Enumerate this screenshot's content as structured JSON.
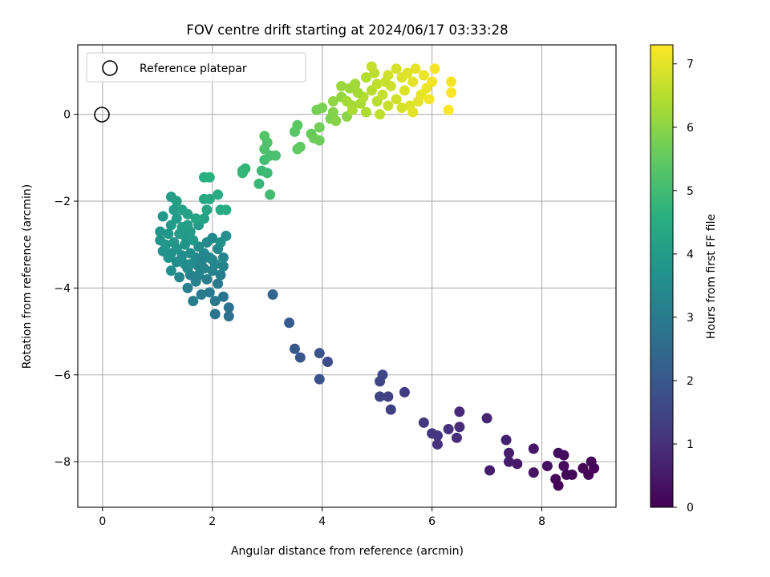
{
  "chart_data": {
    "type": "scatter",
    "title": "FOV centre drift starting at 2024/06/17 03:33:28",
    "xlabel": "Angular distance from reference (arcmin)",
    "ylabel": "Rotation from reference (arcmin)",
    "xlim": [
      -0.45,
      9.35
    ],
    "ylim": [
      -9.05,
      1.6
    ],
    "xticks": [
      "0",
      "2",
      "4",
      "6",
      "8"
    ],
    "yticks": [
      "0",
      "−2",
      "−4",
      "−6",
      "−8"
    ],
    "grid": true,
    "legend": {
      "position": "top-left",
      "entries": [
        "Reference platepar"
      ]
    },
    "reference_point": {
      "x": 0,
      "y": 0,
      "marker": "hollow circle"
    },
    "colorbar": {
      "label": "Hours from first FF file",
      "range": [
        0,
        7.3
      ],
      "ticks": [
        "0",
        "1",
        "2",
        "3",
        "4",
        "5",
        "6",
        "7"
      ],
      "colormap": "viridis"
    },
    "points": [
      {
        "x": 8.3,
        "y": -8.55,
        "h": 0.05
      },
      {
        "x": 8.25,
        "y": -8.4,
        "h": 0.1
      },
      {
        "x": 8.45,
        "y": -8.3,
        "h": 0.1
      },
      {
        "x": 8.55,
        "y": -8.3,
        "h": 0.15
      },
      {
        "x": 8.85,
        "y": -8.3,
        "h": 0.05
      },
      {
        "x": 8.75,
        "y": -8.15,
        "h": 0.1
      },
      {
        "x": 8.95,
        "y": -8.15,
        "h": 0.05
      },
      {
        "x": 8.9,
        "y": -8.0,
        "h": 0.1
      },
      {
        "x": 8.4,
        "y": -8.1,
        "h": 0.2
      },
      {
        "x": 8.4,
        "y": -7.85,
        "h": 0.25
      },
      {
        "x": 8.3,
        "y": -7.8,
        "h": 0.3
      },
      {
        "x": 8.1,
        "y": -8.1,
        "h": 0.35
      },
      {
        "x": 7.85,
        "y": -8.25,
        "h": 0.4
      },
      {
        "x": 7.85,
        "y": -7.7,
        "h": 0.45
      },
      {
        "x": 7.55,
        "y": -8.05,
        "h": 0.5
      },
      {
        "x": 7.4,
        "y": -8.0,
        "h": 0.55
      },
      {
        "x": 7.4,
        "y": -7.8,
        "h": 0.6
      },
      {
        "x": 7.35,
        "y": -7.5,
        "h": 0.65
      },
      {
        "x": 7.05,
        "y": -8.2,
        "h": 0.55
      },
      {
        "x": 7.0,
        "y": -7.0,
        "h": 0.75
      },
      {
        "x": 6.5,
        "y": -6.85,
        "h": 0.85
      },
      {
        "x": 6.5,
        "y": -7.2,
        "h": 0.9
      },
      {
        "x": 6.45,
        "y": -7.45,
        "h": 0.95
      },
      {
        "x": 6.3,
        "y": -7.25,
        "h": 1.0
      },
      {
        "x": 6.1,
        "y": -7.6,
        "h": 1.05
      },
      {
        "x": 6.1,
        "y": -7.4,
        "h": 1.1
      },
      {
        "x": 6.0,
        "y": -7.35,
        "h": 1.15
      },
      {
        "x": 5.85,
        "y": -7.1,
        "h": 1.2
      },
      {
        "x": 5.5,
        "y": -6.4,
        "h": 1.3
      },
      {
        "x": 5.25,
        "y": -6.8,
        "h": 1.35
      },
      {
        "x": 5.2,
        "y": -6.5,
        "h": 1.4
      },
      {
        "x": 5.05,
        "y": -6.5,
        "h": 1.45
      },
      {
        "x": 5.05,
        "y": -6.15,
        "h": 1.5
      },
      {
        "x": 5.1,
        "y": -6.0,
        "h": 1.55
      },
      {
        "x": 4.1,
        "y": -5.7,
        "h": 1.75
      },
      {
        "x": 3.95,
        "y": -6.1,
        "h": 1.8
      },
      {
        "x": 3.95,
        "y": -5.5,
        "h": 1.85
      },
      {
        "x": 3.6,
        "y": -5.6,
        "h": 1.95
      },
      {
        "x": 3.5,
        "y": -5.4,
        "h": 2.0
      },
      {
        "x": 3.4,
        "y": -4.8,
        "h": 2.15
      },
      {
        "x": 3.1,
        "y": -4.15,
        "h": 2.4
      },
      {
        "x": 2.3,
        "y": -4.65,
        "h": 2.7
      },
      {
        "x": 2.3,
        "y": -4.45,
        "h": 2.75
      },
      {
        "x": 2.2,
        "y": -4.2,
        "h": 2.8
      },
      {
        "x": 2.05,
        "y": -4.6,
        "h": 2.85
      },
      {
        "x": 2.05,
        "y": -4.3,
        "h": 2.9
      },
      {
        "x": 1.95,
        "y": -4.1,
        "h": 2.95
      },
      {
        "x": 1.8,
        "y": -4.15,
        "h": 3.0
      },
      {
        "x": 1.65,
        "y": -4.3,
        "h": 3.05
      },
      {
        "x": 1.55,
        "y": -4.0,
        "h": 3.1
      },
      {
        "x": 1.6,
        "y": -3.7,
        "h": 3.15
      },
      {
        "x": 1.75,
        "y": -3.5,
        "h": 3.2
      },
      {
        "x": 1.9,
        "y": -3.8,
        "h": 3.1
      },
      {
        "x": 2.0,
        "y": -3.6,
        "h": 3.2
      },
      {
        "x": 2.1,
        "y": -3.9,
        "h": 3.0
      },
      {
        "x": 2.15,
        "y": -3.7,
        "h": 3.1
      },
      {
        "x": 2.2,
        "y": -3.5,
        "h": 3.25
      },
      {
        "x": 2.0,
        "y": -3.35,
        "h": 3.3
      },
      {
        "x": 1.85,
        "y": -3.2,
        "h": 3.35
      },
      {
        "x": 1.7,
        "y": -3.3,
        "h": 3.4
      },
      {
        "x": 1.5,
        "y": -3.45,
        "h": 3.5
      },
      {
        "x": 1.35,
        "y": -3.4,
        "h": 3.55
      },
      {
        "x": 1.25,
        "y": -3.6,
        "h": 3.6
      },
      {
        "x": 1.2,
        "y": -3.3,
        "h": 3.65
      },
      {
        "x": 1.1,
        "y": -3.15,
        "h": 3.7
      },
      {
        "x": 1.05,
        "y": -2.9,
        "h": 3.75
      },
      {
        "x": 1.05,
        "y": -2.7,
        "h": 3.8
      },
      {
        "x": 1.1,
        "y": -2.35,
        "h": 3.85
      },
      {
        "x": 1.25,
        "y": -2.55,
        "h": 3.9
      },
      {
        "x": 1.35,
        "y": -2.4,
        "h": 3.95
      },
      {
        "x": 1.3,
        "y": -2.2,
        "h": 4.0
      },
      {
        "x": 1.25,
        "y": -1.9,
        "h": 4.05
      },
      {
        "x": 1.35,
        "y": -2.0,
        "h": 4.1
      },
      {
        "x": 1.45,
        "y": -2.2,
        "h": 4.15
      },
      {
        "x": 1.55,
        "y": -2.3,
        "h": 4.2
      },
      {
        "x": 1.45,
        "y": -2.6,
        "h": 4.1
      },
      {
        "x": 1.6,
        "y": -2.7,
        "h": 4.0
      },
      {
        "x": 1.75,
        "y": -2.55,
        "h": 3.95
      },
      {
        "x": 1.85,
        "y": -2.4,
        "h": 4.15
      },
      {
        "x": 1.7,
        "y": -2.4,
        "h": 4.25
      },
      {
        "x": 1.5,
        "y": -2.8,
        "h": 3.9
      },
      {
        "x": 1.3,
        "y": -2.95,
        "h": 3.85
      },
      {
        "x": 1.2,
        "y": -2.75,
        "h": 3.8
      },
      {
        "x": 1.35,
        "y": -3.1,
        "h": 3.75
      },
      {
        "x": 1.5,
        "y": -3.0,
        "h": 3.7
      },
      {
        "x": 1.6,
        "y": -3.2,
        "h": 3.6
      },
      {
        "x": 1.75,
        "y": -3.05,
        "h": 3.55
      },
      {
        "x": 1.9,
        "y": -2.95,
        "h": 3.5
      },
      {
        "x": 2.0,
        "y": -2.85,
        "h": 3.45
      },
      {
        "x": 2.1,
        "y": -3.1,
        "h": 3.4
      },
      {
        "x": 2.2,
        "y": -3.3,
        "h": 3.35
      },
      {
        "x": 2.25,
        "y": -2.8,
        "h": 3.6
      },
      {
        "x": 2.15,
        "y": -2.95,
        "h": 3.65
      },
      {
        "x": 1.45,
        "y": -3.25,
        "h": 3.6
      },
      {
        "x": 1.55,
        "y": -3.55,
        "h": 3.45
      },
      {
        "x": 1.4,
        "y": -3.75,
        "h": 3.35
      },
      {
        "x": 1.7,
        "y": -3.85,
        "h": 3.25
      },
      {
        "x": 1.85,
        "y": -3.55,
        "h": 3.3
      },
      {
        "x": 1.95,
        "y": -3.3,
        "h": 3.4
      },
      {
        "x": 1.65,
        "y": -2.9,
        "h": 3.9
      },
      {
        "x": 1.4,
        "y": -2.75,
        "h": 4.0
      },
      {
        "x": 1.55,
        "y": -2.55,
        "h": 4.05
      },
      {
        "x": 1.25,
        "y": -3.2,
        "h": 3.7
      },
      {
        "x": 1.15,
        "y": -3.0,
        "h": 3.8
      },
      {
        "x": 1.8,
        "y": -3.4,
        "h": 3.3
      },
      {
        "x": 2.05,
        "y": -3.45,
        "h": 3.35
      },
      {
        "x": 1.75,
        "y": -3.7,
        "h": 3.2
      },
      {
        "x": 1.6,
        "y": -3.45,
        "h": 3.5
      },
      {
        "x": 1.9,
        "y": -2.2,
        "h": 4.3
      },
      {
        "x": 1.85,
        "y": -1.95,
        "h": 4.35
      },
      {
        "x": 1.95,
        "y": -1.95,
        "h": 4.4
      },
      {
        "x": 2.15,
        "y": -2.2,
        "h": 4.45
      },
      {
        "x": 2.1,
        "y": -1.85,
        "h": 4.5
      },
      {
        "x": 2.25,
        "y": -2.2,
        "h": 4.5
      },
      {
        "x": 1.85,
        "y": -1.45,
        "h": 4.55
      },
      {
        "x": 1.95,
        "y": -1.45,
        "h": 4.6
      },
      {
        "x": 2.55,
        "y": -1.3,
        "h": 4.7
      },
      {
        "x": 2.6,
        "y": -1.25,
        "h": 4.75
      },
      {
        "x": 2.55,
        "y": -1.35,
        "h": 4.8
      },
      {
        "x": 2.85,
        "y": -1.6,
        "h": 4.85
      },
      {
        "x": 2.9,
        "y": -1.3,
        "h": 4.9
      },
      {
        "x": 3.0,
        "y": -1.35,
        "h": 4.95
      },
      {
        "x": 3.05,
        "y": -1.85,
        "h": 5.0
      },
      {
        "x": 2.95,
        "y": -1.05,
        "h": 5.05
      },
      {
        "x": 3.05,
        "y": -0.95,
        "h": 5.1
      },
      {
        "x": 3.15,
        "y": -0.95,
        "h": 5.15
      },
      {
        "x": 2.95,
        "y": -0.8,
        "h": 5.2
      },
      {
        "x": 3.0,
        "y": -0.65,
        "h": 5.25
      },
      {
        "x": 2.95,
        "y": -0.5,
        "h": 5.3
      },
      {
        "x": 3.5,
        "y": -0.4,
        "h": 5.35
      },
      {
        "x": 3.55,
        "y": -0.25,
        "h": 5.4
      },
      {
        "x": 3.6,
        "y": -0.75,
        "h": 5.45
      },
      {
        "x": 3.55,
        "y": -0.8,
        "h": 5.5
      },
      {
        "x": 3.8,
        "y": -0.45,
        "h": 5.55
      },
      {
        "x": 3.85,
        "y": -0.55,
        "h": 5.6
      },
      {
        "x": 3.95,
        "y": -0.6,
        "h": 5.65
      },
      {
        "x": 3.95,
        "y": -0.3,
        "h": 5.7
      },
      {
        "x": 3.9,
        "y": 0.1,
        "h": 5.75
      },
      {
        "x": 4.0,
        "y": 0.15,
        "h": 5.8
      },
      {
        "x": 4.15,
        "y": -0.1,
        "h": 5.85
      },
      {
        "x": 4.2,
        "y": 0.05,
        "h": 5.9
      },
      {
        "x": 4.25,
        "y": -0.15,
        "h": 5.95
      },
      {
        "x": 4.45,
        "y": -0.05,
        "h": 6.0
      },
      {
        "x": 4.2,
        "y": 0.3,
        "h": 6.05
      },
      {
        "x": 4.35,
        "y": 0.4,
        "h": 6.1
      },
      {
        "x": 4.35,
        "y": 0.65,
        "h": 6.15
      },
      {
        "x": 4.5,
        "y": 0.6,
        "h": 6.2
      },
      {
        "x": 4.6,
        "y": 0.7,
        "h": 6.25
      },
      {
        "x": 4.45,
        "y": 0.3,
        "h": 6.3
      },
      {
        "x": 4.55,
        "y": 0.2,
        "h": 6.3
      },
      {
        "x": 4.7,
        "y": 0.25,
        "h": 6.35
      },
      {
        "x": 4.8,
        "y": 0.05,
        "h": 6.4
      },
      {
        "x": 4.75,
        "y": 0.4,
        "h": 6.45
      },
      {
        "x": 4.9,
        "y": 0.55,
        "h": 6.5
      },
      {
        "x": 4.65,
        "y": 0.5,
        "h": 6.3
      },
      {
        "x": 4.8,
        "y": 0.85,
        "h": 6.45
      },
      {
        "x": 4.95,
        "y": 0.95,
        "h": 6.55
      },
      {
        "x": 5.0,
        "y": 0.7,
        "h": 6.6
      },
      {
        "x": 4.9,
        "y": 1.1,
        "h": 6.65
      },
      {
        "x": 5.05,
        "y": 0.0,
        "h": 6.6
      },
      {
        "x": 5.0,
        "y": 0.3,
        "h": 6.5
      },
      {
        "x": 5.1,
        "y": 0.45,
        "h": 6.65
      },
      {
        "x": 5.2,
        "y": 0.2,
        "h": 6.7
      },
      {
        "x": 5.25,
        "y": 0.65,
        "h": 6.75
      },
      {
        "x": 5.35,
        "y": 0.35,
        "h": 6.8
      },
      {
        "x": 5.2,
        "y": 0.9,
        "h": 6.8
      },
      {
        "x": 5.35,
        "y": 1.05,
        "h": 6.85
      },
      {
        "x": 5.45,
        "y": 0.85,
        "h": 6.9
      },
      {
        "x": 5.5,
        "y": 0.55,
        "h": 6.9
      },
      {
        "x": 5.6,
        "y": 0.2,
        "h": 6.95
      },
      {
        "x": 5.65,
        "y": 0.05,
        "h": 7.0
      },
      {
        "x": 5.55,
        "y": 0.95,
        "h": 6.95
      },
      {
        "x": 5.65,
        "y": 0.75,
        "h": 7.0
      },
      {
        "x": 5.7,
        "y": 1.05,
        "h": 7.05
      },
      {
        "x": 5.8,
        "y": 0.45,
        "h": 7.05
      },
      {
        "x": 5.85,
        "y": 0.9,
        "h": 7.1
      },
      {
        "x": 5.9,
        "y": 0.6,
        "h": 7.1
      },
      {
        "x": 5.95,
        "y": 0.35,
        "h": 7.15
      },
      {
        "x": 6.0,
        "y": 0.75,
        "h": 7.15
      },
      {
        "x": 6.05,
        "y": 1.05,
        "h": 7.2
      },
      {
        "x": 5.75,
        "y": 0.3,
        "h": 7.0
      },
      {
        "x": 5.45,
        "y": 0.15,
        "h": 6.85
      },
      {
        "x": 5.15,
        "y": 0.75,
        "h": 6.7
      },
      {
        "x": 4.55,
        "y": 0.1,
        "h": 6.35
      },
      {
        "x": 6.35,
        "y": 0.75,
        "h": 7.2
      },
      {
        "x": 6.35,
        "y": 0.5,
        "h": 7.25
      },
      {
        "x": 6.3,
        "y": 0.1,
        "h": 7.25
      }
    ]
  }
}
